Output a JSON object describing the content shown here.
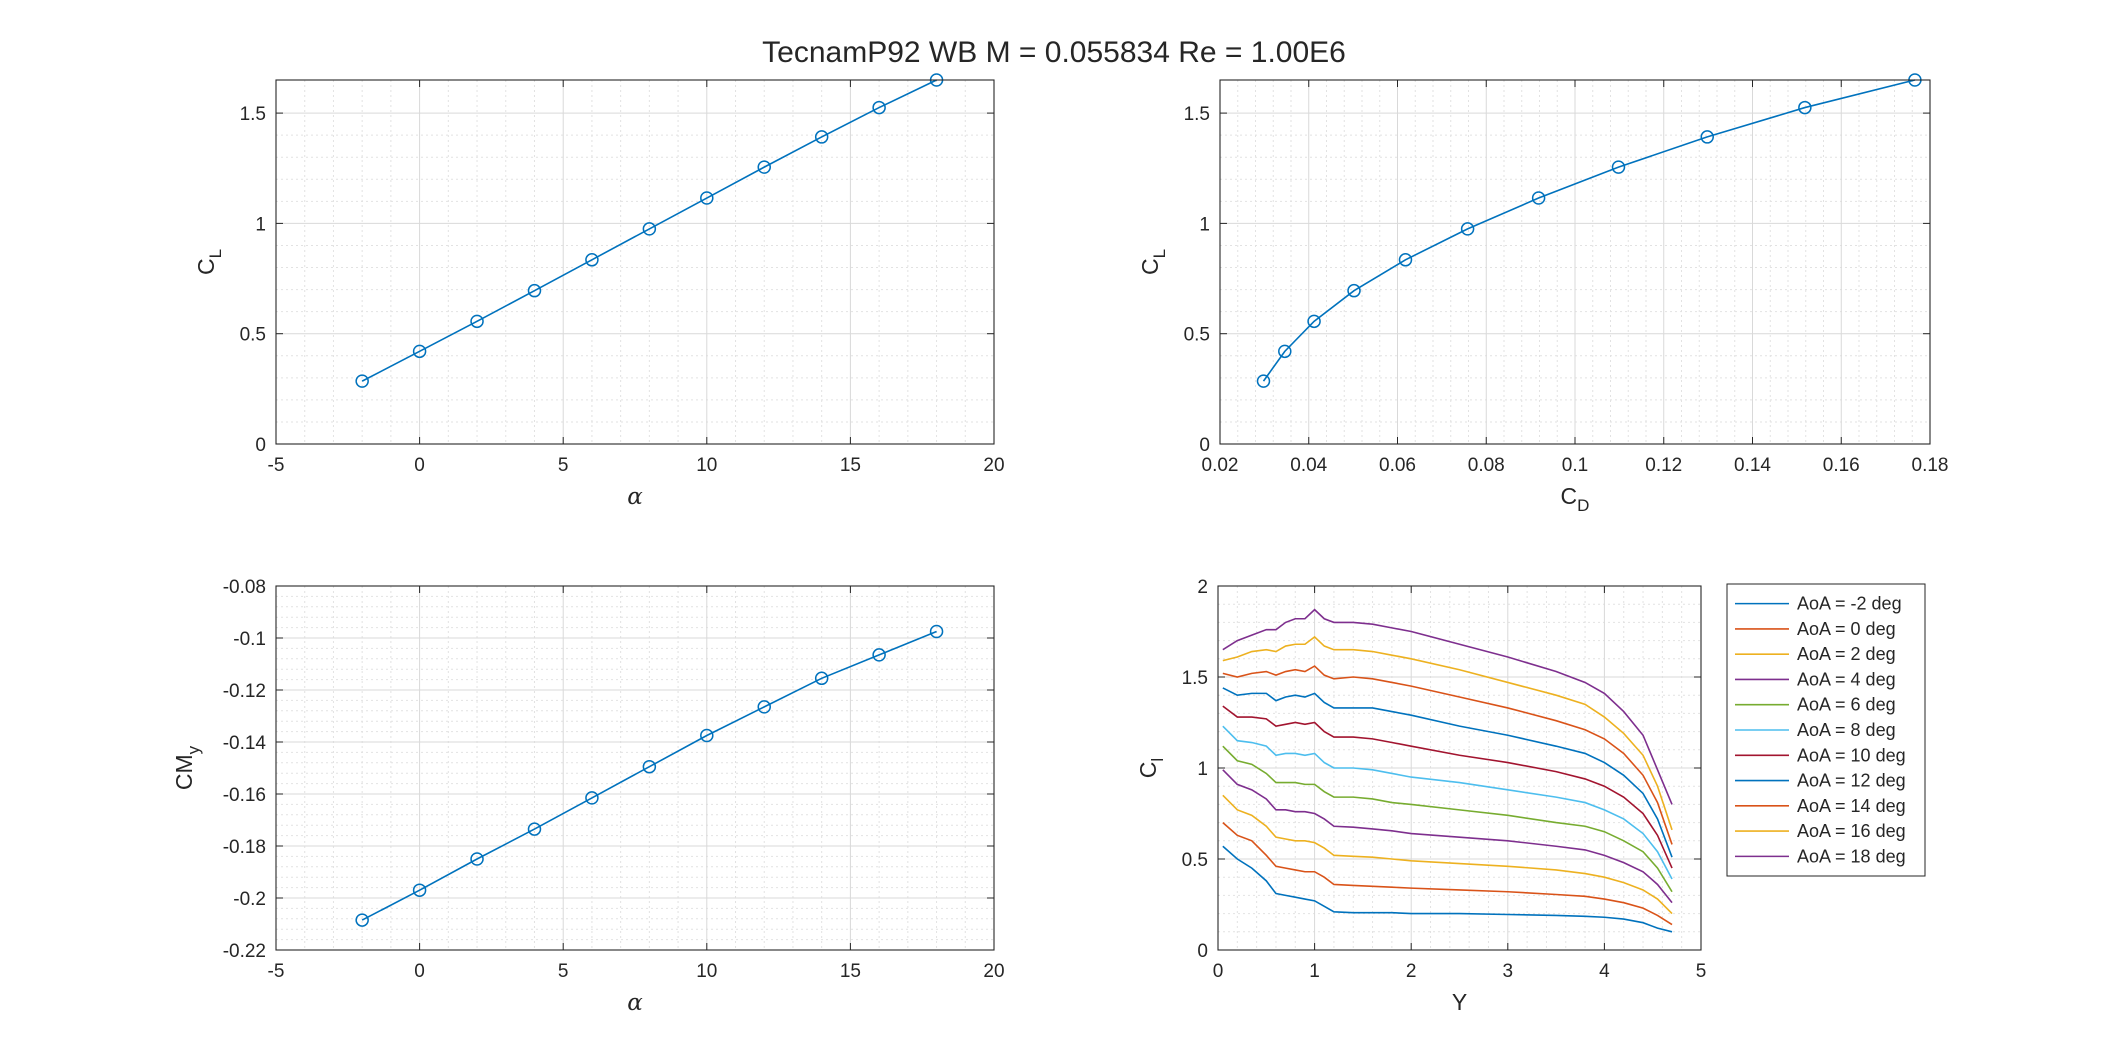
{
  "figure": {
    "title": "TecnamP92  WB  M = 0.055834  Re = 1.00E6"
  },
  "chart_data": [
    {
      "id": "cl-alpha",
      "type": "line",
      "markers": "circle",
      "xlabel": "α",
      "ylabel_main": "C",
      "ylabel_sub": "L",
      "xlim": [
        -5,
        20
      ],
      "ylim": [
        0,
        1.65
      ],
      "xticks": [
        -5,
        0,
        5,
        10,
        15,
        20
      ],
      "yticks": [
        0,
        0.5,
        1,
        1.5
      ],
      "xtick_labels": [
        "-5",
        "0",
        "5",
        "10",
        "15",
        "20"
      ],
      "ytick_labels": [
        "0",
        "0.5",
        "1",
        "1.5"
      ],
      "grid": true,
      "minor_grid": true,
      "series": [
        {
          "color": "#0072BD",
          "x": [
            -2,
            0,
            2,
            4,
            6,
            8,
            10,
            12,
            14,
            16,
            18
          ],
          "y": [
            0.285,
            0.42,
            0.556,
            0.695,
            0.835,
            0.975,
            1.115,
            1.255,
            1.392,
            1.525,
            1.65
          ]
        }
      ]
    },
    {
      "id": "cl-cd",
      "type": "line",
      "markers": "circle",
      "xlabel_main": "C",
      "xlabel_sub": "D",
      "ylabel_main": "C",
      "ylabel_sub": "L",
      "xlim": [
        0.02,
        0.18
      ],
      "ylim": [
        0,
        1.65
      ],
      "xticks": [
        0.02,
        0.04,
        0.06,
        0.08,
        0.1,
        0.12,
        0.14,
        0.16,
        0.18
      ],
      "yticks": [
        0,
        0.5,
        1,
        1.5
      ],
      "xtick_labels": [
        "0.02",
        "0.04",
        "0.06",
        "0.08",
        "0.1",
        "0.12",
        "0.14",
        "0.16",
        "0.18"
      ],
      "ytick_labels": [
        "0",
        "0.5",
        "1",
        "1.5"
      ],
      "grid": true,
      "minor_grid": true,
      "series": [
        {
          "color": "#0072BD",
          "x": [
            0.0298,
            0.0346,
            0.0412,
            0.0502,
            0.0618,
            0.0758,
            0.0918,
            0.1098,
            0.1298,
            0.1518,
            0.1766
          ],
          "y": [
            0.285,
            0.42,
            0.556,
            0.695,
            0.835,
            0.975,
            1.115,
            1.255,
            1.392,
            1.525,
            1.65
          ]
        }
      ]
    },
    {
      "id": "cm-alpha",
      "type": "line",
      "markers": "circle",
      "xlabel": "α",
      "ylabel_main": "CM",
      "ylabel_sub": "y",
      "xlim": [
        -5,
        20
      ],
      "ylim": [
        -0.22,
        -0.08
      ],
      "xticks": [
        -5,
        0,
        5,
        10,
        15,
        20
      ],
      "yticks": [
        -0.22,
        -0.2,
        -0.18,
        -0.16,
        -0.14,
        -0.12,
        -0.1,
        -0.08
      ],
      "xtick_labels": [
        "-5",
        "0",
        "5",
        "10",
        "15",
        "20"
      ],
      "ytick_labels": [
        "-0.22",
        "-0.2",
        "-0.18",
        "-0.16",
        "-0.14",
        "-0.12",
        "-0.1",
        "-0.08"
      ],
      "grid": true,
      "minor_grid": true,
      "series": [
        {
          "color": "#0072BD",
          "x": [
            -2,
            0,
            2,
            4,
            6,
            8,
            10,
            12,
            14,
            16,
            18
          ],
          "y": [
            -0.2085,
            -0.197,
            -0.185,
            -0.1735,
            -0.1615,
            -0.1495,
            -0.1375,
            -0.1265,
            -0.1155,
            -0.1065,
            -0.0975
          ]
        }
      ]
    },
    {
      "id": "cl-span",
      "type": "line",
      "markers": "none",
      "xlabel": "Y",
      "ylabel_main": "C",
      "ylabel_sub": "l",
      "xlim": [
        0,
        5
      ],
      "ylim": [
        0,
        2
      ],
      "xticks": [
        0,
        1,
        2,
        3,
        4,
        5
      ],
      "yticks": [
        0,
        0.5,
        1,
        1.5,
        2
      ],
      "xtick_labels": [
        "0",
        "1",
        "2",
        "3",
        "4",
        "5"
      ],
      "ytick_labels": [
        "0",
        "0.5",
        "1",
        "1.5",
        "2"
      ],
      "grid": true,
      "minor_grid": true,
      "legend_position": "outside-right",
      "x": [
        0.05,
        0.2,
        0.35,
        0.5,
        0.6,
        0.7,
        0.8,
        0.9,
        1.0,
        1.1,
        1.2,
        1.4,
        1.6,
        1.8,
        2.0,
        2.5,
        3.0,
        3.5,
        3.8,
        4.0,
        4.2,
        4.4,
        4.55,
        4.7
      ],
      "series": [
        {
          "name": "AoA = -2 deg",
          "color": "#0072BD",
          "y": [
            0.57,
            0.5,
            0.45,
            0.38,
            0.31,
            0.3,
            0.29,
            0.28,
            0.27,
            0.24,
            0.21,
            0.205,
            0.205,
            0.205,
            0.2,
            0.2,
            0.195,
            0.19,
            0.185,
            0.18,
            0.17,
            0.15,
            0.12,
            0.1
          ]
        },
        {
          "name": "AoA = 0 deg",
          "color": "#D95319",
          "y": [
            0.7,
            0.63,
            0.6,
            0.52,
            0.46,
            0.45,
            0.44,
            0.43,
            0.43,
            0.4,
            0.36,
            0.355,
            0.35,
            0.345,
            0.34,
            0.33,
            0.32,
            0.305,
            0.295,
            0.28,
            0.26,
            0.23,
            0.19,
            0.14
          ]
        },
        {
          "name": "AoA = 2 deg",
          "color": "#EDB120",
          "y": [
            0.85,
            0.77,
            0.74,
            0.68,
            0.62,
            0.61,
            0.6,
            0.6,
            0.59,
            0.56,
            0.52,
            0.515,
            0.51,
            0.5,
            0.49,
            0.475,
            0.46,
            0.44,
            0.42,
            0.4,
            0.37,
            0.33,
            0.28,
            0.2
          ]
        },
        {
          "name": "AoA = 4 deg",
          "color": "#7E2F8E",
          "y": [
            0.99,
            0.91,
            0.88,
            0.83,
            0.77,
            0.77,
            0.76,
            0.76,
            0.75,
            0.72,
            0.68,
            0.675,
            0.665,
            0.655,
            0.64,
            0.62,
            0.6,
            0.57,
            0.55,
            0.52,
            0.48,
            0.43,
            0.36,
            0.26
          ]
        },
        {
          "name": "AoA = 6 deg",
          "color": "#77AC30",
          "y": [
            1.12,
            1.04,
            1.02,
            0.97,
            0.92,
            0.92,
            0.92,
            0.91,
            0.91,
            0.87,
            0.84,
            0.84,
            0.83,
            0.81,
            0.8,
            0.77,
            0.74,
            0.7,
            0.68,
            0.65,
            0.6,
            0.54,
            0.45,
            0.32
          ]
        },
        {
          "name": "AoA = 8 deg",
          "color": "#4DBEEE",
          "y": [
            1.23,
            1.15,
            1.14,
            1.12,
            1.07,
            1.08,
            1.08,
            1.07,
            1.08,
            1.03,
            1.0,
            1.0,
            0.99,
            0.97,
            0.95,
            0.92,
            0.88,
            0.84,
            0.81,
            0.77,
            0.72,
            0.64,
            0.54,
            0.39
          ]
        },
        {
          "name": "AoA = 10 deg",
          "color": "#A2142F",
          "y": [
            1.34,
            1.28,
            1.28,
            1.27,
            1.23,
            1.24,
            1.25,
            1.24,
            1.25,
            1.2,
            1.17,
            1.17,
            1.16,
            1.14,
            1.12,
            1.07,
            1.03,
            0.98,
            0.94,
            0.9,
            0.84,
            0.75,
            0.63,
            0.45
          ]
        },
        {
          "name": "AoA = 12 deg",
          "color": "#0072BD",
          "y": [
            1.44,
            1.4,
            1.41,
            1.41,
            1.37,
            1.39,
            1.4,
            1.39,
            1.41,
            1.36,
            1.33,
            1.33,
            1.33,
            1.31,
            1.29,
            1.23,
            1.18,
            1.12,
            1.08,
            1.03,
            0.96,
            0.86,
            0.72,
            0.51
          ]
        },
        {
          "name": "AoA = 14 deg",
          "color": "#D95319",
          "y": [
            1.52,
            1.5,
            1.52,
            1.53,
            1.51,
            1.53,
            1.54,
            1.53,
            1.56,
            1.51,
            1.49,
            1.5,
            1.49,
            1.47,
            1.45,
            1.39,
            1.33,
            1.26,
            1.21,
            1.16,
            1.08,
            0.96,
            0.81,
            0.58
          ]
        },
        {
          "name": "AoA = 16 deg",
          "color": "#EDB120",
          "y": [
            1.59,
            1.61,
            1.64,
            1.65,
            1.64,
            1.67,
            1.68,
            1.68,
            1.72,
            1.67,
            1.65,
            1.65,
            1.64,
            1.62,
            1.6,
            1.54,
            1.47,
            1.4,
            1.35,
            1.28,
            1.19,
            1.07,
            0.9,
            0.66
          ]
        },
        {
          "name": "AoA = 18 deg",
          "color": "#7E2F8E",
          "y": [
            1.65,
            1.7,
            1.73,
            1.76,
            1.76,
            1.8,
            1.82,
            1.82,
            1.87,
            1.82,
            1.8,
            1.8,
            1.79,
            1.77,
            1.75,
            1.68,
            1.61,
            1.53,
            1.47,
            1.41,
            1.31,
            1.18,
            0.99,
            0.8
          ]
        }
      ]
    }
  ]
}
